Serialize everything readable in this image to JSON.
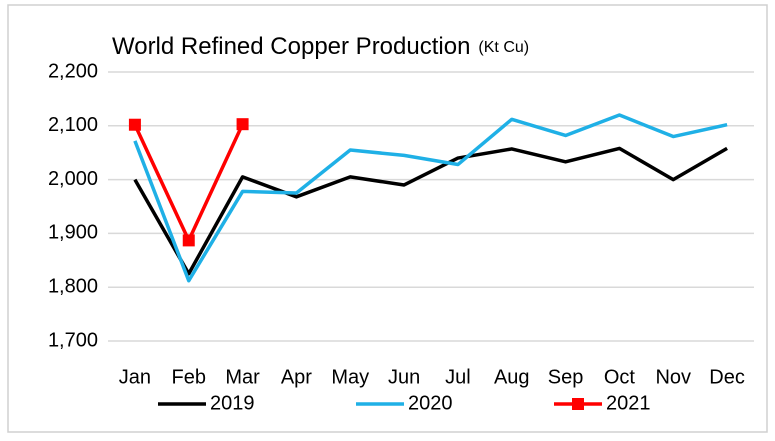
{
  "chart_data": {
    "type": "line",
    "title": "World Refined Copper Production",
    "subtitle": "(Kt Cu)",
    "categories": [
      "Jan",
      "Feb",
      "Mar",
      "Apr",
      "May",
      "Jun",
      "Jul",
      "Aug",
      "Sep",
      "Oct",
      "Nov",
      "Dec"
    ],
    "series": [
      {
        "name": "2019",
        "color": "#000000",
        "values": [
          2000,
          1825,
          2005,
          1968,
          2005,
          1990,
          2040,
          2057,
          2033,
          2058,
          2000,
          2058
        ]
      },
      {
        "name": "2020",
        "color": "#1fb0e6",
        "values": [
          2072,
          1812,
          1978,
          1975,
          2055,
          2045,
          2028,
          2112,
          2082,
          2120,
          2080,
          2102
        ]
      },
      {
        "name": "2021",
        "color": "#ff0000",
        "marker": "square",
        "values": [
          2102,
          1887,
          2103,
          null,
          null,
          null,
          null,
          null,
          null,
          null,
          null,
          null
        ]
      }
    ],
    "ylim": [
      1700,
      2200
    ],
    "yticks": [
      {
        "value": 1700,
        "label": "1,700"
      },
      {
        "value": 1800,
        "label": "1,800"
      },
      {
        "value": 1900,
        "label": "1,900"
      },
      {
        "value": 2000,
        "label": "2,000"
      },
      {
        "value": 2100,
        "label": "2,100"
      },
      {
        "value": 2200,
        "label": "2,200"
      }
    ],
    "grid": true,
    "legend": "bottom"
  }
}
